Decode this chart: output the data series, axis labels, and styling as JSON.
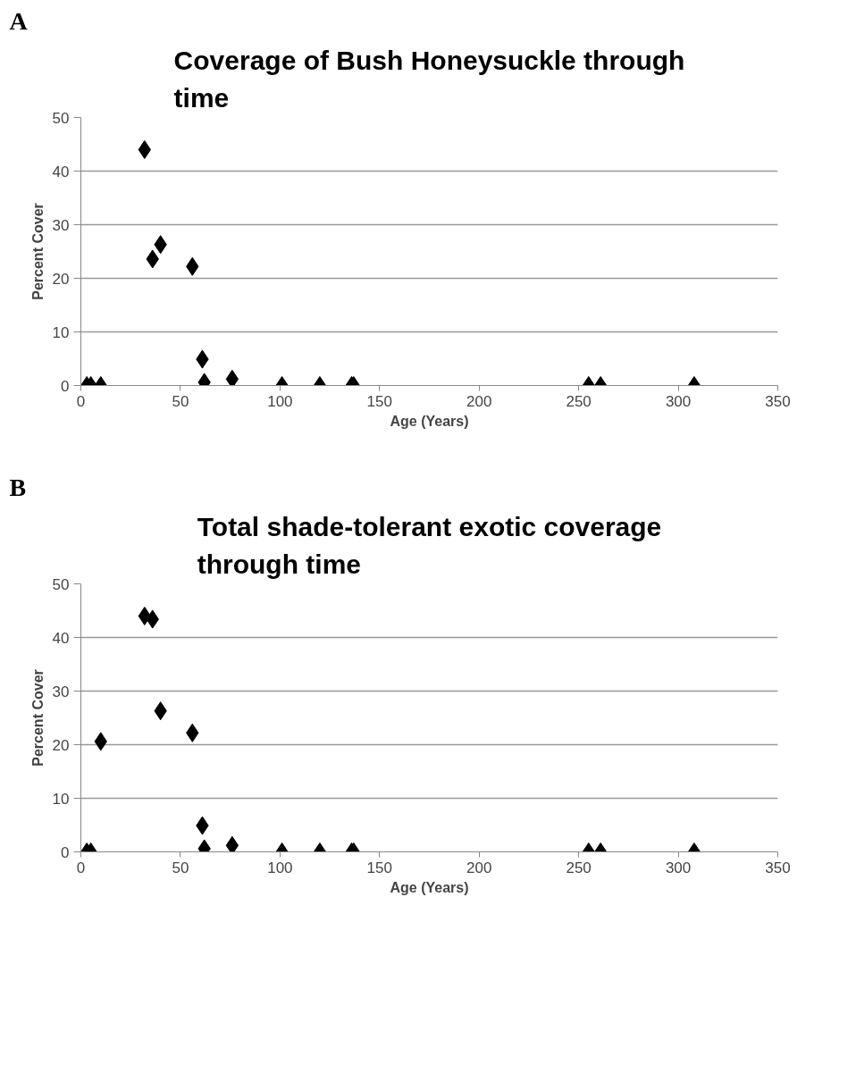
{
  "chart_data": [
    {
      "type": "scatter",
      "title": "Coverage of Bush Honeysuckle through time",
      "xlabel": "Age (Years)",
      "ylabel": "Percent Cover",
      "annotations": [
        "A"
      ],
      "x": [
        3,
        5,
        10,
        32,
        36,
        40,
        56,
        61,
        62,
        76,
        101,
        120,
        136,
        137,
        255,
        261,
        308
      ],
      "series": [
        {
          "color": "#000000",
          "values": [
            0,
            0,
            0,
            44,
            23.6,
            26.3,
            22.2,
            4.9,
            0.6,
            1.2,
            0,
            0,
            0,
            0,
            0,
            0,
            0
          ]
        }
      ],
      "xlim": [
        0,
        350
      ],
      "xticks": [
        0,
        50,
        100,
        150,
        200,
        250,
        300,
        350
      ],
      "ylim": [
        0,
        50
      ],
      "yticks": [
        0,
        10,
        20,
        30,
        40,
        50
      ],
      "grid": "y",
      "marker": "diamond"
    },
    {
      "type": "scatter",
      "title": "Total shade-tolerant exotic coverage through time",
      "xlabel": "Age (Years)",
      "ylabel": "Percent Cover",
      "annotations": [
        "B"
      ],
      "x": [
        3,
        5,
        10,
        32,
        36,
        40,
        56,
        61,
        62,
        76,
        101,
        120,
        136,
        137,
        255,
        261,
        308
      ],
      "series": [
        {
          "color": "#000000",
          "values": [
            0,
            0,
            20.6,
            44,
            43.4,
            26.3,
            22.2,
            4.9,
            0.6,
            1.2,
            0,
            0,
            0,
            0,
            0,
            0,
            0
          ]
        }
      ],
      "xlim": [
        0,
        350
      ],
      "xticks": [
        0,
        50,
        100,
        150,
        200,
        250,
        300,
        350
      ],
      "ylim": [
        0,
        50
      ],
      "yticks": [
        0,
        10,
        20,
        30,
        40,
        50
      ],
      "grid": "y",
      "marker": "diamond"
    }
  ]
}
